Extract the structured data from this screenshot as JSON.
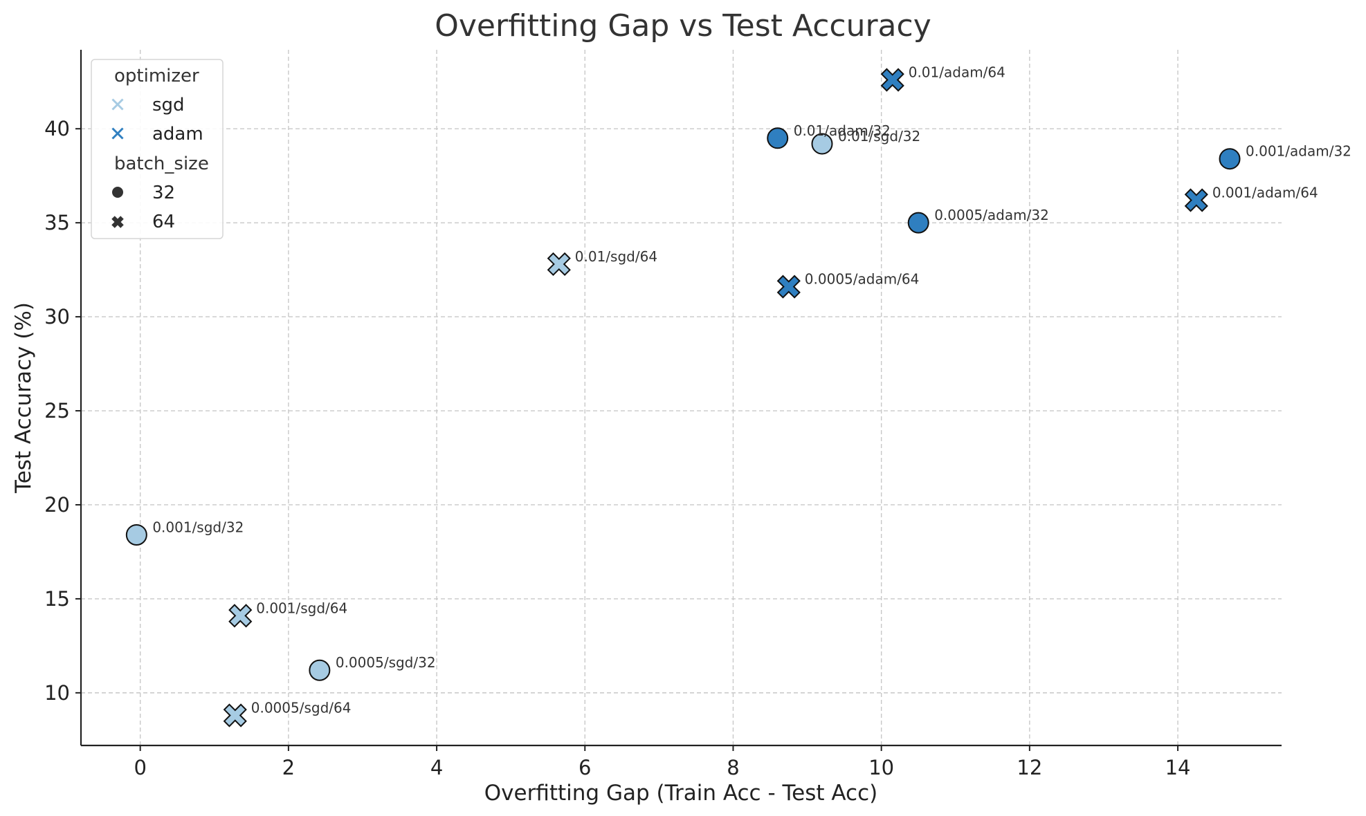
{
  "chart_data": {
    "type": "scatter",
    "title": "Overfitting Gap vs Test Accuracy",
    "xlabel": "Overfitting Gap (Train Acc - Test Acc)",
    "ylabel": "Test Accuracy (%)",
    "xlim": [
      -0.8,
      15.4
    ],
    "ylim": [
      7.2,
      44.2
    ],
    "xticks": [
      "0",
      "2",
      "4",
      "6",
      "8",
      "10",
      "12",
      "14"
    ],
    "yticks": [
      "10",
      "15",
      "20",
      "25",
      "30",
      "35",
      "40"
    ],
    "grid": true,
    "legend_placement": "top-left",
    "legend": {
      "hue_title": "optimizer",
      "hue_entries": [
        {
          "label": "sgd",
          "color": "#a6cbe3"
        },
        {
          "label": "adam",
          "color": "#2f7fc0"
        }
      ],
      "style_title": "batch_size",
      "style_entries": [
        {
          "label": "32",
          "marker": "circle"
        },
        {
          "label": "64",
          "marker": "x"
        }
      ]
    },
    "points": [
      {
        "label": "0.01/adam/64",
        "x": 10.15,
        "y": 42.6,
        "optimizer": "adam",
        "batch_size": "64"
      },
      {
        "label": "0.01/adam/32",
        "x": 8.6,
        "y": 39.5,
        "optimizer": "adam",
        "batch_size": "32"
      },
      {
        "label": "0.01/sgd/32",
        "x": 9.2,
        "y": 39.2,
        "optimizer": "sgd",
        "batch_size": "32"
      },
      {
        "label": "0.001/adam/32",
        "x": 14.7,
        "y": 38.4,
        "optimizer": "adam",
        "batch_size": "32"
      },
      {
        "label": "0.001/adam/64",
        "x": 14.25,
        "y": 36.2,
        "optimizer": "adam",
        "batch_size": "64"
      },
      {
        "label": "0.0005/adam/32",
        "x": 10.5,
        "y": 35.0,
        "optimizer": "adam",
        "batch_size": "32"
      },
      {
        "label": "0.01/sgd/64",
        "x": 5.65,
        "y": 32.8,
        "optimizer": "sgd",
        "batch_size": "64"
      },
      {
        "label": "0.0005/adam/64",
        "x": 8.75,
        "y": 31.6,
        "optimizer": "adam",
        "batch_size": "64"
      },
      {
        "label": "0.001/sgd/32",
        "x": -0.05,
        "y": 18.4,
        "optimizer": "sgd",
        "batch_size": "32"
      },
      {
        "label": "0.001/sgd/64",
        "x": 1.35,
        "y": 14.1,
        "optimizer": "sgd",
        "batch_size": "64"
      },
      {
        "label": "0.0005/sgd/32",
        "x": 2.42,
        "y": 11.2,
        "optimizer": "sgd",
        "batch_size": "32"
      },
      {
        "label": "0.0005/sgd/64",
        "x": 1.28,
        "y": 8.8,
        "optimizer": "sgd",
        "batch_size": "64"
      }
    ],
    "colors": {
      "sgd": "#a6cbe3",
      "adam": "#2f7fc0",
      "edge": "#111111",
      "style_marker": "#333333"
    }
  }
}
